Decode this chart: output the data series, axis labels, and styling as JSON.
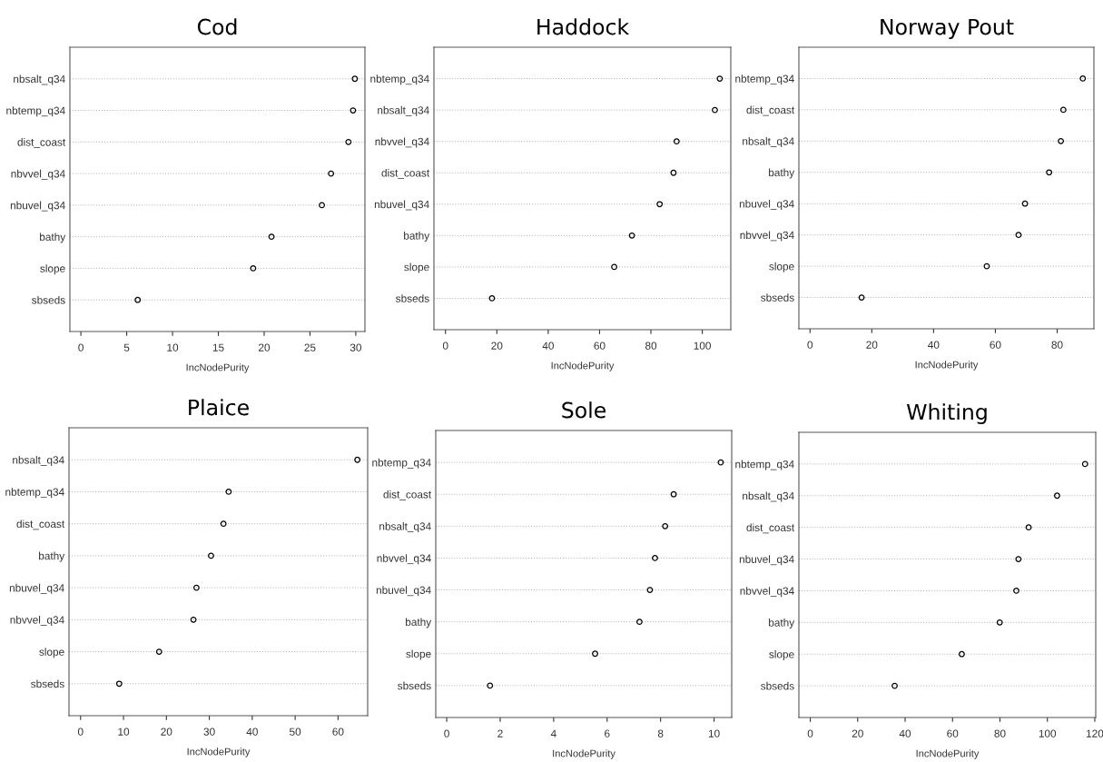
{
  "chart_data": [
    {
      "type": "scatter",
      "orientation": "horizontal",
      "title": "Cod",
      "xlabel": "IncNodePurity",
      "categories": [
        "nbsalt_q34",
        "nbtemp_q34",
        "dist_coast",
        "nbvvel_q34",
        "nbuvel_q34",
        "bathy",
        "slope",
        "sbseds"
      ],
      "values": [
        29.9,
        29.7,
        29.2,
        27.3,
        26.3,
        20.8,
        18.8,
        6.2
      ],
      "color": "#000000",
      "marker": "circle",
      "grid": "y",
      "xlim": [
        -1.2,
        31.0
      ],
      "xticks": [
        0,
        5,
        10,
        15,
        20,
        25,
        30
      ]
    },
    {
      "type": "scatter",
      "orientation": "horizontal",
      "title": "Haddock",
      "xlabel": "IncNodePurity",
      "categories": [
        "nbtemp_q34",
        "nbsalt_q34",
        "nbvvel_q34",
        "dist_coast",
        "nbuvel_q34",
        "bathy",
        "slope",
        "sbseds"
      ],
      "values": [
        106.8,
        104.9,
        90.0,
        88.8,
        83.4,
        72.6,
        65.7,
        18.1
      ],
      "color": "#000000",
      "marker": "circle",
      "grid": "y",
      "xlim": [
        -4.5,
        111.1
      ],
      "xticks": [
        0,
        20,
        40,
        60,
        80,
        100
      ]
    },
    {
      "type": "scatter",
      "orientation": "horizontal",
      "title": "Norway Pout",
      "xlabel": "IncNodePurity",
      "categories": [
        "nbtemp_q34",
        "dist_coast",
        "nbsalt_q34",
        "bathy",
        "nbuvel_q34",
        "nbvvel_q34",
        "slope",
        "sbseds"
      ],
      "values": [
        88.3,
        82.0,
        81.2,
        77.4,
        69.6,
        67.5,
        57.2,
        16.7
      ],
      "color": "#000000",
      "marker": "circle",
      "grid": "y",
      "xlim": [
        -3.6,
        91.9
      ],
      "xticks": [
        0,
        20,
        40,
        60,
        80
      ]
    },
    {
      "type": "scatter",
      "orientation": "horizontal",
      "title": "Plaice",
      "xlabel": "IncNodePurity",
      "categories": [
        "nbsalt_q34",
        "nbtemp_q34",
        "dist_coast",
        "bathy",
        "nbuvel_q34",
        "nbvvel_q34",
        "slope",
        "sbseds"
      ],
      "values": [
        64.5,
        34.5,
        33.3,
        30.4,
        27.0,
        26.3,
        18.3,
        9.0
      ],
      "color": "#000000",
      "marker": "circle",
      "grid": "y",
      "xlim": [
        -2.7,
        66.9
      ],
      "xticks": [
        0,
        10,
        20,
        30,
        40,
        50,
        60
      ]
    },
    {
      "type": "scatter",
      "orientation": "horizontal",
      "title": "Sole",
      "xlabel": "IncNodePurity",
      "categories": [
        "nbtemp_q34",
        "dist_coast",
        "nbsalt_q34",
        "nbvvel_q34",
        "nbuvel_q34",
        "bathy",
        "slope",
        "sbseds"
      ],
      "values": [
        10.25,
        8.49,
        8.17,
        7.79,
        7.6,
        7.21,
        5.55,
        1.62
      ],
      "color": "#000000",
      "marker": "circle",
      "grid": "y",
      "xlim": [
        -0.41,
        10.66
      ],
      "xticks": [
        0,
        2,
        4,
        6,
        8,
        10
      ]
    },
    {
      "type": "scatter",
      "orientation": "horizontal",
      "title": "Whiting",
      "xlabel": "IncNodePurity",
      "categories": [
        "nbtemp_q34",
        "nbsalt_q34",
        "dist_coast",
        "nbuvel_q34",
        "nbvvel_q34",
        "bathy",
        "slope",
        "sbseds"
      ],
      "values": [
        115.9,
        104.1,
        92.1,
        87.8,
        86.9,
        79.9,
        63.9,
        35.6
      ],
      "color": "#000000",
      "marker": "circle",
      "grid": "y",
      "xlim": [
        -4.8,
        120.4
      ],
      "xticks": [
        0,
        20,
        40,
        60,
        80,
        100,
        120
      ]
    }
  ]
}
